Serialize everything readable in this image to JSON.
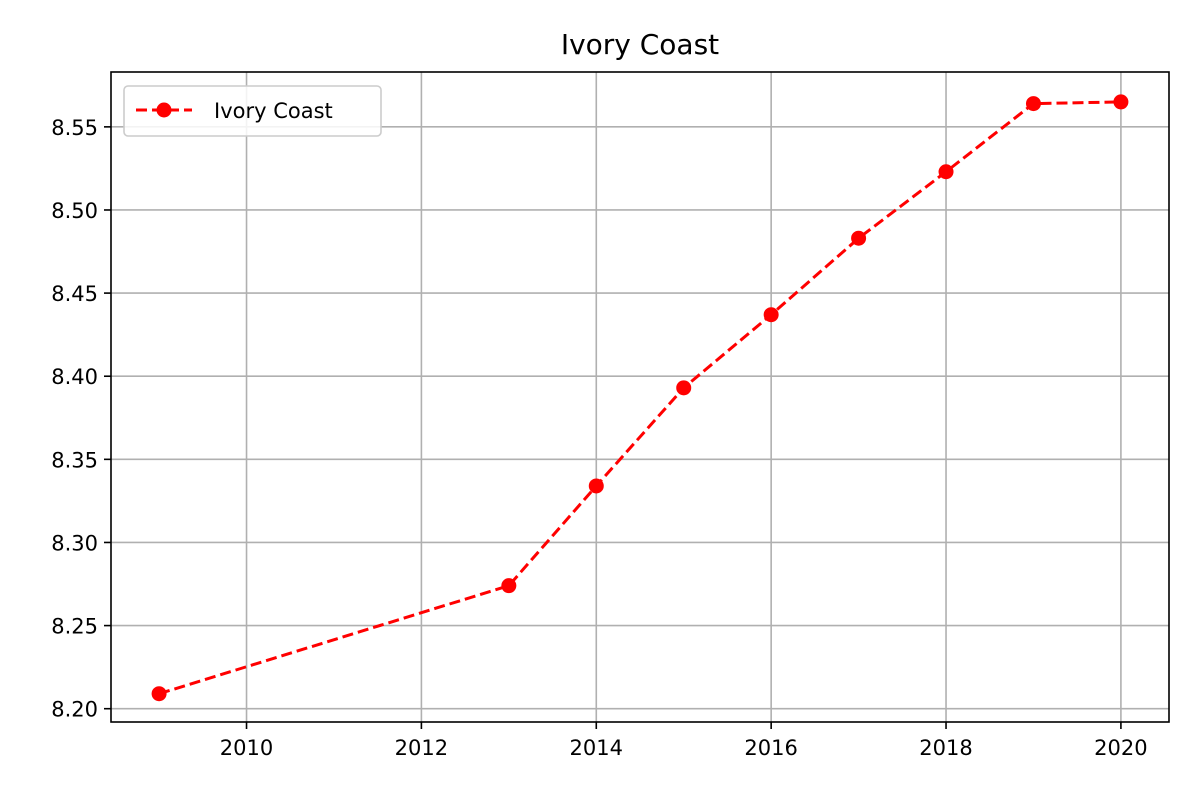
{
  "chart_data": {
    "type": "line",
    "title": "Ivory Coast",
    "xlabel": "",
    "ylabel": "",
    "x": [
      2009,
      2013,
      2014,
      2015,
      2016,
      2017,
      2018,
      2019,
      2020
    ],
    "series": [
      {
        "name": "Ivory Coast",
        "values": [
          8.209,
          8.274,
          8.334,
          8.393,
          8.437,
          8.483,
          8.523,
          8.564,
          8.565
        ],
        "color": "#ff0000",
        "line_style": "dashed",
        "marker": "circle"
      }
    ],
    "xlim": [
      2008.45,
      2020.55
    ],
    "ylim": [
      8.192,
      8.583
    ],
    "x_ticks": [
      2010,
      2012,
      2014,
      2016,
      2018,
      2020
    ],
    "x_tick_labels": [
      "2010",
      "2012",
      "2014",
      "2016",
      "2018",
      "2020"
    ],
    "y_ticks": [
      8.2,
      8.25,
      8.3,
      8.35,
      8.4,
      8.45,
      8.5,
      8.55
    ],
    "y_tick_labels": [
      "8.20",
      "8.25",
      "8.30",
      "8.35",
      "8.40",
      "8.45",
      "8.50",
      "8.55"
    ],
    "grid": true,
    "legend_position": "top-left"
  }
}
